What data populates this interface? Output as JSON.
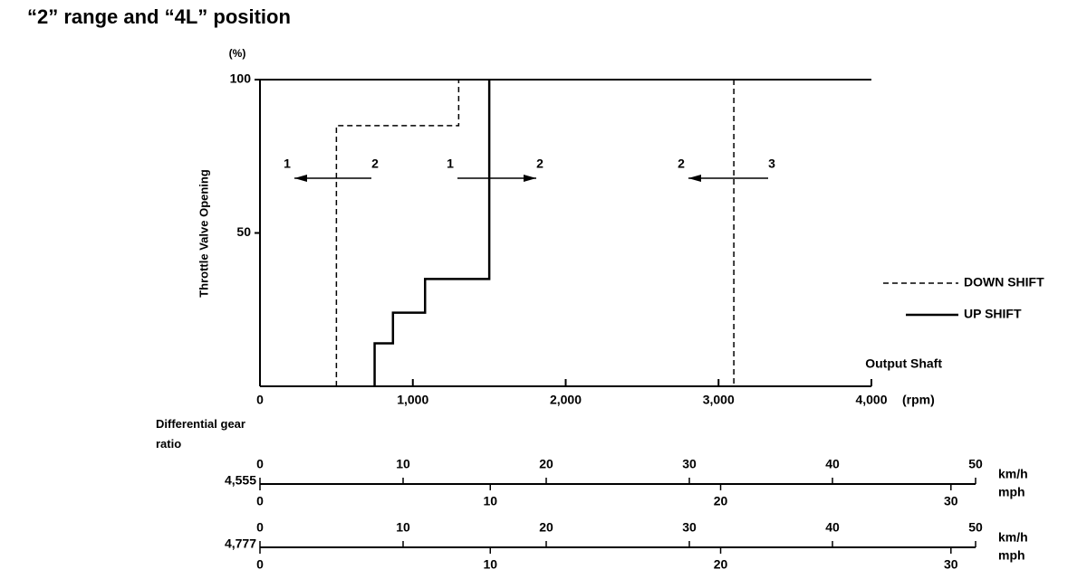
{
  "chart_data": {
    "type": "line",
    "title": "“2” range and “4L” position",
    "y_label": "Throttle Valve Opening",
    "y_unit": "(%)",
    "x_label": "Output Shaft",
    "x_unit": "(rpm)",
    "xlim": [
      0,
      4000
    ],
    "ylim": [
      0,
      100
    ],
    "xticks": [
      0,
      {
        "value": 1000,
        "label": "1,000"
      },
      {
        "value": 2000,
        "label": "2,000"
      },
      {
        "value": 3000,
        "label": "3,000"
      },
      {
        "value": 4000,
        "label": "4,000"
      }
    ],
    "yticks": [
      50,
      100
    ],
    "series": [
      {
        "name": "DOWN SHIFT",
        "color": "#000000",
        "dashed": true,
        "x": [
          500,
          500,
          1300,
          1300,
          null,
          3100,
          3100
        ],
        "values": [
          0,
          85,
          85,
          100,
          null,
          100,
          0
        ]
      },
      {
        "name": "UP SHIFT",
        "color": "#000000",
        "dashed": false,
        "x": [
          750,
          750,
          870,
          870,
          1080,
          1080,
          1500,
          1500
        ],
        "values": [
          0,
          14,
          14,
          24,
          24,
          35,
          35,
          100
        ]
      }
    ],
    "shift_arrows": [
      {
        "left": "1",
        "right": "2"
      },
      {
        "left": "1",
        "right": "2"
      },
      {
        "left": "2",
        "right": "3"
      }
    ],
    "speed_scales": {
      "label": "Differential gear ratio",
      "kmh_unit": "km/h",
      "mph_unit": "mph",
      "scales": [
        {
          "ratio": "4,555",
          "kmh_lim": [
            0,
            50
          ],
          "kmh_ticks": [
            0,
            10,
            20,
            30,
            40,
            50
          ],
          "mph_lim": [
            0,
            31.07
          ],
          "mph_ticks": [
            0,
            10,
            20,
            30
          ]
        },
        {
          "ratio": "4,777",
          "kmh_lim": [
            0,
            50
          ],
          "kmh_ticks": [
            0,
            10,
            20,
            30,
            40,
            50
          ],
          "mph_lim": [
            0,
            31.07
          ],
          "mph_ticks": [
            0,
            10,
            20,
            30
          ]
        }
      ]
    }
  }
}
